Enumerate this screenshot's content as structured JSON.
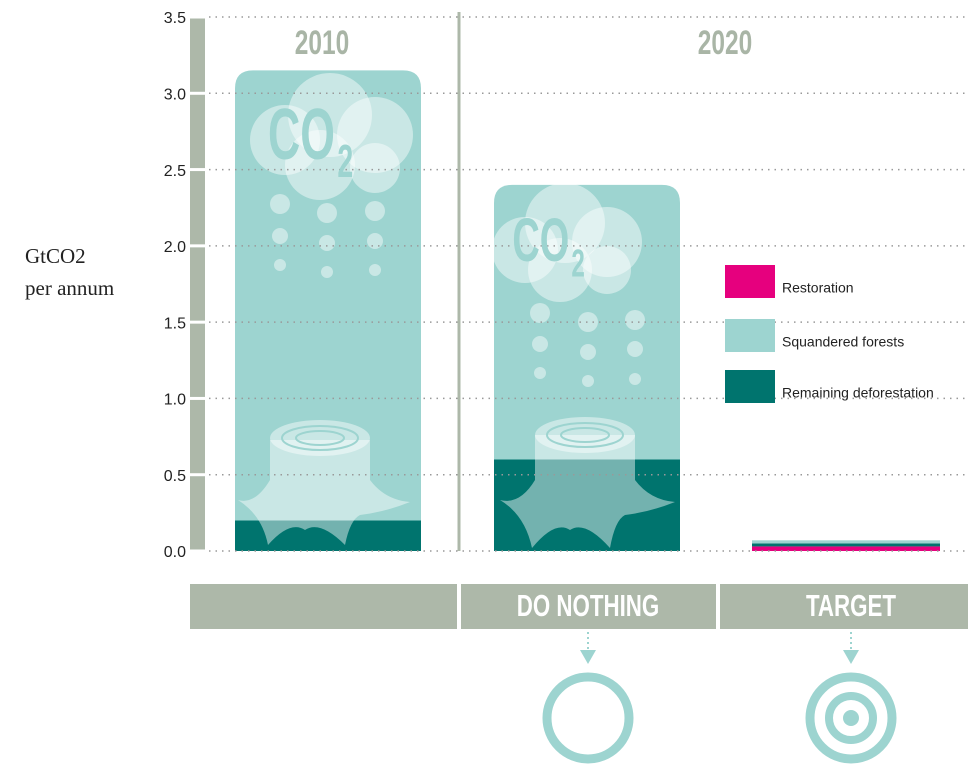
{
  "chart_data": {
    "type": "stacked_bar",
    "ylabel": [
      "GtCO2",
      "per annum"
    ],
    "period_labels": [
      "2010",
      "2020"
    ],
    "categories": [
      null,
      "DO NOTHING",
      "TARGET"
    ],
    "cloud_text": [
      "CO",
      "2"
    ],
    "series": [
      {
        "name": "Restoration",
        "color": "#e6007e",
        "values": [
          0,
          0,
          0.03
        ]
      },
      {
        "name": "Remaining deforestation",
        "color": "#00746e",
        "values": [
          0.2,
          0.6,
          0.02
        ]
      },
      {
        "name": "Squandered forests",
        "color": "#9dd4d0",
        "values": [
          2.95,
          1.8,
          0.02
        ]
      }
    ],
    "ylim": [
      0,
      3.5
    ],
    "yticks": [
      {
        "value": 0,
        "label": "0.0"
      },
      0.5,
      {
        "value": 1,
        "label": "1.0"
      },
      1.5,
      {
        "value": 2,
        "label": "2.0"
      },
      2.5,
      {
        "value": 3,
        "label": "3.0"
      },
      3.5
    ],
    "grid": true
  }
}
